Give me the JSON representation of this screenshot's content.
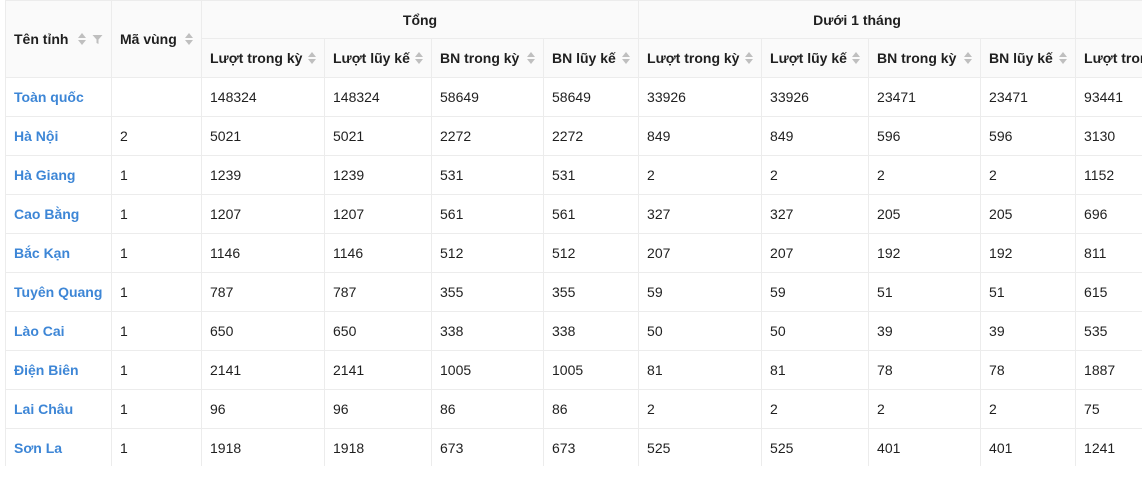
{
  "header": {
    "ten_tinh": "Tên tỉnh",
    "ma_vung": "Mã vùng",
    "groups": [
      "Tổng",
      "Dưới 1 tháng"
    ],
    "subcols": [
      "Lượt trong kỳ",
      "Lượt lũy kế",
      "BN trong kỳ",
      "BN lũy kế",
      "Lượt trong kỳ"
    ]
  },
  "rows": [
    {
      "name": "Toàn quốc",
      "code": "",
      "v": [
        "148324",
        "148324",
        "58649",
        "58649",
        "33926",
        "33926",
        "23471",
        "23471",
        "93441"
      ]
    },
    {
      "name": "Hà Nội",
      "code": "2",
      "v": [
        "5021",
        "5021",
        "2272",
        "2272",
        "849",
        "849",
        "596",
        "596",
        "3130"
      ]
    },
    {
      "name": "Hà Giang",
      "code": "1",
      "v": [
        "1239",
        "1239",
        "531",
        "531",
        "2",
        "2",
        "2",
        "2",
        "1152"
      ]
    },
    {
      "name": "Cao Bằng",
      "code": "1",
      "v": [
        "1207",
        "1207",
        "561",
        "561",
        "327",
        "327",
        "205",
        "205",
        "696"
      ]
    },
    {
      "name": "Bắc Kạn",
      "code": "1",
      "v": [
        "1146",
        "1146",
        "512",
        "512",
        "207",
        "207",
        "192",
        "192",
        "811"
      ]
    },
    {
      "name": "Tuyên Quang",
      "code": "1",
      "v": [
        "787",
        "787",
        "355",
        "355",
        "59",
        "59",
        "51",
        "51",
        "615"
      ]
    },
    {
      "name": "Lào Cai",
      "code": "1",
      "v": [
        "650",
        "650",
        "338",
        "338",
        "50",
        "50",
        "39",
        "39",
        "535"
      ]
    },
    {
      "name": "Điện Biên",
      "code": "1",
      "v": [
        "2141",
        "2141",
        "1005",
        "1005",
        "81",
        "81",
        "78",
        "78",
        "1887"
      ]
    },
    {
      "name": "Lai Châu",
      "code": "1",
      "v": [
        "96",
        "96",
        "86",
        "86",
        "2",
        "2",
        "2",
        "2",
        "75"
      ]
    },
    {
      "name": "Sơn La",
      "code": "1",
      "v": [
        "1918",
        "1918",
        "673",
        "673",
        "525",
        "525",
        "401",
        "401",
        "1241"
      ]
    }
  ]
}
